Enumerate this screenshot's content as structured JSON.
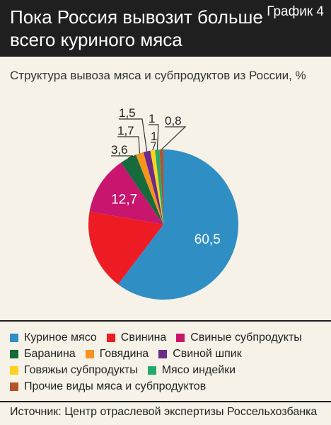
{
  "header": {
    "title": "Пока Россия вывозит больше всего куриного мяса",
    "badge": "График 4"
  },
  "subtitle": "Структура вывоза мяса и субпродуктов из России, %",
  "source": "Источник: Центр отраслевой экспертизы Россельхозбанка",
  "chart_data": {
    "type": "pie",
    "slices": [
      {
        "label": "Куриное мясо",
        "value": 60.5,
        "value_label": "60,5",
        "color": "#2f8fc4"
      },
      {
        "label": "Свинина",
        "value": 17.5,
        "value_label": "",
        "color": "#ed1c24"
      },
      {
        "label": "Свиные субпродукты",
        "value": 12.7,
        "value_label": "12,7",
        "color": "#c8156e"
      },
      {
        "label": "Баранина",
        "value": 3.6,
        "value_label": "3,6",
        "color": "#156b3c"
      },
      {
        "label": "Говядина",
        "value": 1.7,
        "value_label": "1,7",
        "color": "#f7941d"
      },
      {
        "label": "Свиной шпик",
        "value": 1.5,
        "value_label": "1,5",
        "color": "#6c2a8a"
      },
      {
        "label": "Говяжьи субпродукты",
        "value": 1,
        "value_label": "1",
        "color": "#ffd21f"
      },
      {
        "label": "Мясо индейки",
        "value": 1,
        "value_label": "1",
        "color": "#27a96b"
      },
      {
        "label": "Прочие виды мяса и субпродуктов",
        "value": 0.8,
        "value_label": "0,8",
        "color": "#b5532b"
      }
    ]
  }
}
